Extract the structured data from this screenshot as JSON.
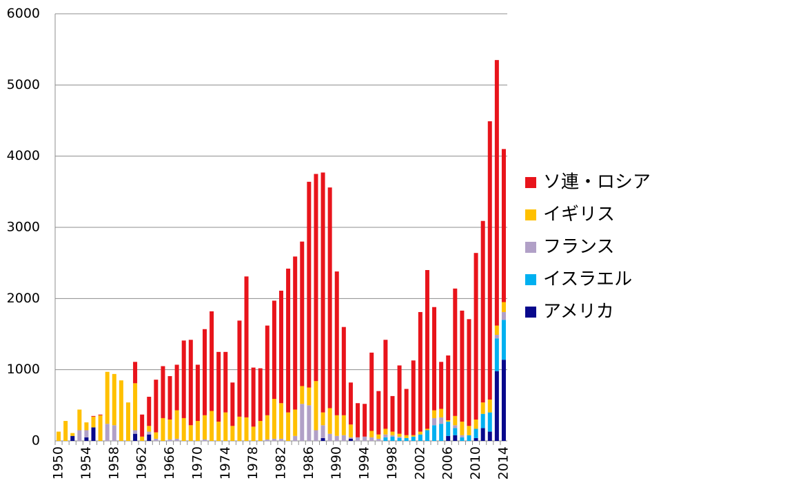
{
  "chart_data": {
    "type": "stacked_bar",
    "categories": [
      "1950",
      null,
      null,
      null,
      "1954",
      null,
      null,
      null,
      "1958",
      null,
      null,
      null,
      "1962",
      null,
      null,
      null,
      "1966",
      null,
      null,
      null,
      "1970",
      null,
      null,
      null,
      "1974",
      null,
      null,
      null,
      "1978",
      null,
      null,
      null,
      "1982",
      null,
      null,
      null,
      "1986",
      null,
      null,
      null,
      "1990",
      null,
      null,
      null,
      "1994",
      null,
      null,
      null,
      "1998",
      null,
      null,
      null,
      "2002",
      null,
      null,
      null,
      "2006",
      null,
      null,
      null,
      "2010",
      null,
      null,
      null,
      "2014"
    ],
    "series": [
      {
        "name": "アメリカ",
        "color": "#08088c",
        "values": [
          0,
          0,
          70,
          0,
          50,
          190,
          0,
          0,
          0,
          0,
          0,
          100,
          0,
          90,
          0,
          0,
          0,
          0,
          0,
          0,
          0,
          0,
          0,
          0,
          0,
          0,
          0,
          0,
          0,
          0,
          0,
          0,
          0,
          0,
          0,
          0,
          0,
          0,
          40,
          0,
          0,
          0,
          30,
          0,
          0,
          0,
          0,
          0,
          0,
          0,
          0,
          0,
          0,
          0,
          0,
          0,
          70,
          80,
          0,
          0,
          40,
          180,
          130,
          980,
          1140
        ]
      },
      {
        "name": "イスラエル",
        "color": "#00b0f0",
        "values": [
          0,
          0,
          0,
          0,
          0,
          0,
          0,
          0,
          0,
          0,
          0,
          0,
          0,
          0,
          0,
          0,
          0,
          0,
          0,
          0,
          0,
          0,
          0,
          0,
          0,
          0,
          0,
          0,
          0,
          0,
          0,
          0,
          0,
          0,
          0,
          0,
          0,
          0,
          0,
          0,
          0,
          0,
          0,
          0,
          0,
          0,
          0,
          50,
          60,
          40,
          40,
          60,
          90,
          150,
          220,
          240,
          200,
          100,
          50,
          80,
          130,
          200,
          270,
          460,
          560
        ]
      },
      {
        "name": "フランス",
        "color": "#b1a0c7",
        "values": [
          0,
          0,
          0,
          150,
          100,
          0,
          0,
          240,
          220,
          0,
          0,
          50,
          0,
          40,
          30,
          0,
          20,
          30,
          0,
          0,
          0,
          20,
          0,
          0,
          0,
          0,
          0,
          0,
          0,
          0,
          20,
          30,
          30,
          0,
          70,
          520,
          500,
          150,
          180,
          100,
          70,
          80,
          20,
          50,
          60,
          50,
          30,
          40,
          20,
          20,
          0,
          0,
          0,
          0,
          100,
          90,
          0,
          40,
          30,
          0,
          0,
          0,
          0,
          50,
          110
        ]
      },
      {
        "name": "イギリス",
        "color": "#ffc000",
        "values": [
          130,
          280,
          40,
          290,
          110,
          150,
          360,
          730,
          720,
          850,
          540,
          660,
          60,
          80,
          90,
          320,
          280,
          400,
          320,
          220,
          280,
          340,
          420,
          270,
          400,
          210,
          340,
          330,
          200,
          280,
          340,
          560,
          500,
          400,
          370,
          250,
          250,
          690,
          180,
          360,
          290,
          280,
          180,
          0,
          0,
          90,
          60,
          80,
          50,
          40,
          40,
          20,
          40,
          20,
          110,
          120,
          20,
          130,
          190,
          130,
          130,
          160,
          180,
          130,
          140
        ]
      },
      {
        "name": "ソ連・ロシア",
        "color": "#e8141b",
        "values": [
          0,
          0,
          0,
          0,
          0,
          10,
          10,
          0,
          0,
          0,
          0,
          300,
          310,
          410,
          740,
          730,
          610,
          640,
          1090,
          1200,
          790,
          1210,
          1400,
          980,
          850,
          610,
          1350,
          1980,
          830,
          740,
          1260,
          1380,
          1580,
          2020,
          2150,
          2030,
          2890,
          2910,
          3370,
          3100,
          2020,
          1240,
          590,
          480,
          460,
          1100,
          610,
          1250,
          500,
          960,
          650,
          1050,
          1680,
          2230,
          1450,
          660,
          910,
          1790,
          1560,
          1500,
          2340,
          2550,
          3910,
          3730,
          2150
        ]
      }
    ],
    "ylim": [
      0,
      6000
    ],
    "yticks": [
      0,
      1000,
      2000,
      3000,
      4000,
      5000,
      6000
    ],
    "grid": true,
    "legend": "right"
  }
}
